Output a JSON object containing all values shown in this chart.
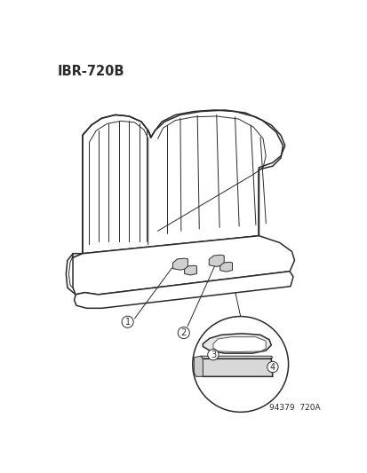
{
  "title_label": "IBR-720B",
  "bottom_label": "94379  720A",
  "background_color": "#ffffff",
  "line_color": "#2a2a2a",
  "figsize": [
    4.14,
    5.33
  ],
  "dpi": 100
}
